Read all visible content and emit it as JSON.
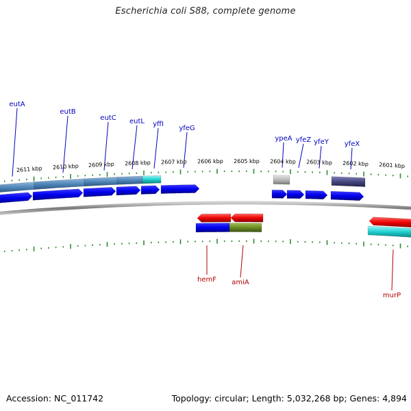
{
  "title": "Escherichia coli S88, complete genome",
  "footer": {
    "accession": "Accession: NC_011742",
    "summary": "Topology: circular; Length: 5,032,268 bp; Genes: 4,894"
  },
  "colors": {
    "background": "#ffffff",
    "backbone": "#8a8a8a",
    "tick": "#2e8b2e",
    "forward_label": "#0000c0",
    "reverse_label": "#b00000",
    "cds_blue": "#0000ee",
    "cds_red": "#ee0000",
    "steelblue": "#4f86b8",
    "cyan": "#20d0d0",
    "olive": "#6b8e23",
    "gray": "#b8b8b8",
    "slate": "#474780"
  },
  "scale_labels": [
    "2611 kbp",
    "2610 kbp",
    "2609 kbp",
    "2608 kbp",
    "2607 kbp",
    "2606 kbp",
    "2605 kbp",
    "2604 kbp",
    "2603 kbp",
    "2602 kbp",
    "2601 kbp"
  ],
  "forward_genes": [
    "eutA",
    "eutB",
    "eutC",
    "eutL",
    "yffI",
    "yfeG",
    "ypeA",
    "yfeZ",
    "yfeY",
    "yfeX"
  ],
  "reverse_genes": [
    "hemF",
    "amiA",
    "murP"
  ]
}
